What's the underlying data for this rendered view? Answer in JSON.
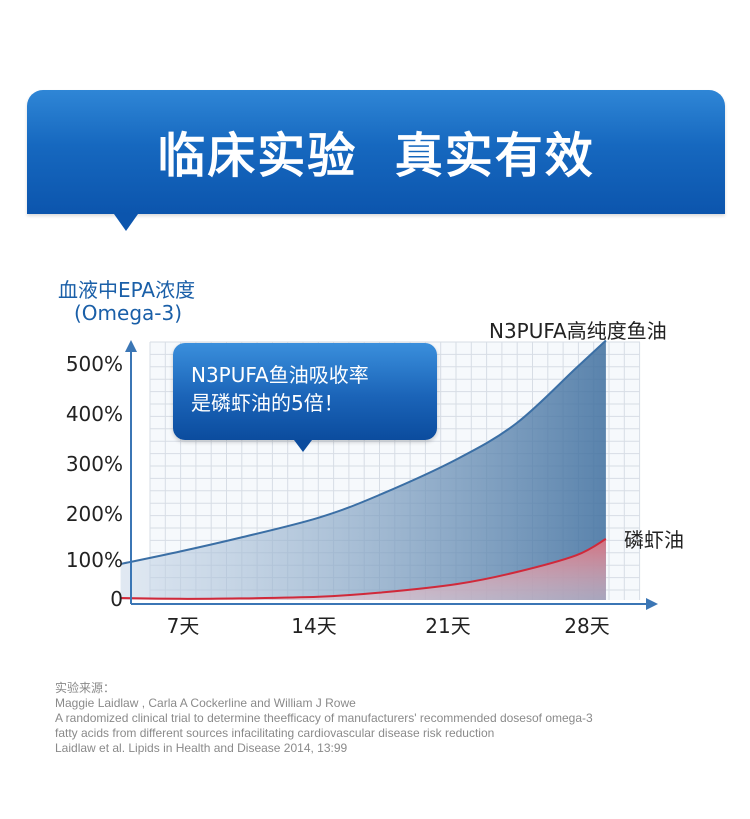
{
  "header": {
    "title": "临床实验  真实有效"
  },
  "callout": {
    "line1": "N3PUFA鱼油吸收率",
    "line2": "是磷虾油的5倍！"
  },
  "source": {
    "heading": "实验来源：",
    "lines": [
      "Maggie Laidlaw , Carla A Cockerline and William J Rowe",
      "A randomized clinical trial to determine theefficacy of manufacturers' recommended dosesof omega-3",
      "fatty acids from different sources infacilitating cardiovascular disease risk reduction",
      "Laidlaw et al. Lipids in Health and Disease 2014, 13:99"
    ]
  },
  "colors": {
    "banner": "#1668bf",
    "fish_oil_line": "#3b6fa5",
    "krill_line": "#d0293a",
    "axis": "#3b76b5"
  },
  "chart_data": {
    "type": "area",
    "ylabel": "血液中EPA浓度",
    "ylabel_sub": "(Omega-3)",
    "y_ticks": [
      "0",
      "100%",
      "200%",
      "300%",
      "400%",
      "500%"
    ],
    "x_ticks": [
      "7天",
      "14天",
      "21天",
      "28天"
    ],
    "grid": true,
    "series": [
      {
        "name": "N3PUFA高纯度鱼油",
        "color": "#3b6fa5",
        "points": [
          [
            4,
            90
          ],
          [
            7,
            118
          ],
          [
            10,
            147
          ],
          [
            14,
            190
          ],
          [
            17,
            235
          ],
          [
            21,
            308
          ],
          [
            24,
            380
          ],
          [
            27,
            490
          ],
          [
            28.5,
            545
          ]
        ]
      },
      {
        "name": "磷虾油",
        "color": "#d0293a",
        "points": [
          [
            4,
            5
          ],
          [
            7,
            3
          ],
          [
            10,
            4
          ],
          [
            14,
            8
          ],
          [
            17,
            18
          ],
          [
            21,
            40
          ],
          [
            24,
            70
          ],
          [
            27,
            110
          ],
          [
            28.5,
            145
          ]
        ]
      }
    ]
  }
}
